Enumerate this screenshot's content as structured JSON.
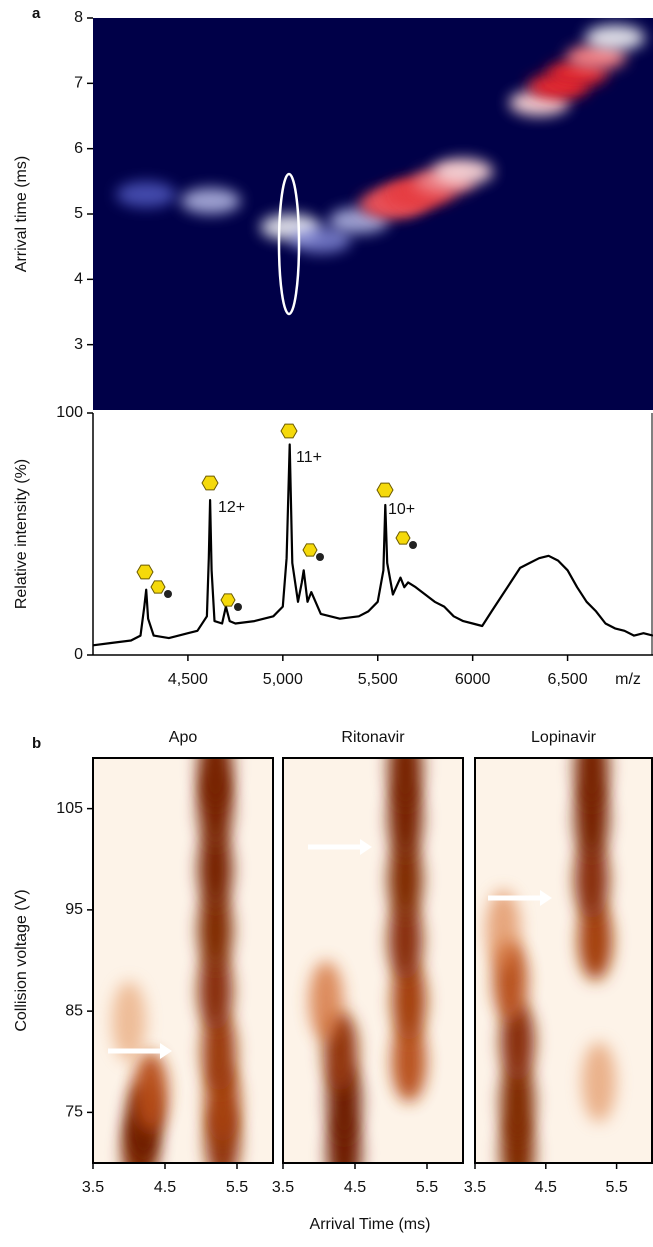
{
  "panel_labels": [
    "a",
    "b"
  ],
  "chart_data": [
    {
      "type": "heatmap",
      "ylabel": "Arrival time (ms)",
      "xlim": [
        4000,
        6950
      ],
      "ylim": [
        2,
        8
      ],
      "yticks": [
        3,
        4,
        5,
        6,
        7,
        8
      ],
      "background": "#000048",
      "colors": [
        "#2438ff",
        "#ffffff",
        "#e3262e"
      ],
      "x": [
        4280,
        4620,
        5040,
        5200,
        5400,
        5560,
        5620,
        5680,
        5750,
        5850,
        5950,
        6350,
        6450,
        6550,
        6650,
        6750
      ],
      "y": [
        5.3,
        5.2,
        4.8,
        4.6,
        4.9,
        5.15,
        5.2,
        5.3,
        5.35,
        5.5,
        5.65,
        6.7,
        6.95,
        7.15,
        7.4,
        7.7
      ],
      "values": [
        0.2,
        0.4,
        0.5,
        0.3,
        0.4,
        0.9,
        0.9,
        0.95,
        0.95,
        0.8,
        0.6,
        0.6,
        1,
        1,
        0.8,
        0.5
      ]
    },
    {
      "type": "line",
      "ylabel": "Relative intensity (%)",
      "xlabel": "m/z",
      "xlim": [
        4000,
        6950
      ],
      "ylim": [
        0,
        100
      ],
      "yticks": [
        0,
        100
      ],
      "xticks": [
        {
          "value": 4500,
          "label": "4,500"
        },
        {
          "value": 5000,
          "label": "5,000"
        },
        {
          "value": 5500,
          "label": "5,500"
        },
        6000,
        {
          "value": 6500,
          "label": "6,500"
        }
      ],
      "color": "#000000",
      "annotations": [
        "12+",
        "11+",
        "10+"
      ],
      "x": [
        4000,
        4100,
        4200,
        4250,
        4270,
        4280,
        4290,
        4320,
        4400,
        4500,
        4550,
        4600,
        4610,
        4617,
        4625,
        4640,
        4680,
        4700,
        4720,
        4750,
        4850,
        4950,
        5000,
        5020,
        5036,
        5050,
        5080,
        5100,
        5110,
        5130,
        5150,
        5200,
        5300,
        5400,
        5450,
        5500,
        5530,
        5540,
        5550,
        5580,
        5620,
        5640,
        5660,
        5700,
        5750,
        5800,
        5850,
        5900,
        5950,
        6000,
        6050,
        6100,
        6150,
        6200,
        6250,
        6300,
        6350,
        6400,
        6450,
        6500,
        6550,
        6600,
        6650,
        6700,
        6750,
        6800,
        6850,
        6900,
        6950
      ],
      "values": [
        4,
        5,
        6,
        8,
        20,
        27,
        15,
        8,
        7,
        9,
        10,
        16,
        40,
        64,
        35,
        14,
        13,
        20,
        14,
        13,
        14,
        16,
        20,
        40,
        87,
        38,
        22,
        30,
        35,
        22,
        26,
        17,
        15,
        16,
        18,
        22,
        35,
        62,
        38,
        25,
        32,
        28,
        30,
        28,
        25,
        22,
        20,
        16,
        14,
        13,
        12,
        18,
        24,
        30,
        36,
        38,
        40,
        41,
        39,
        35,
        28,
        22,
        18,
        13,
        11,
        10,
        8,
        9,
        8
      ]
    },
    {
      "type": "heatmap",
      "title": "Apo",
      "ylabel": "Collision voltage (V)",
      "xlim": [
        3.5,
        6.0
      ],
      "ylim": [
        70,
        110
      ],
      "xticks": [
        3.5,
        4.5,
        5.5
      ],
      "yticks": [
        75,
        85,
        95,
        105
      ],
      "background": "#fdf3e8",
      "colors": [
        "#f4b680",
        "#c8561a",
        "#6e1e00"
      ],
      "x": [
        4.15,
        4.2,
        4.3,
        4.0,
        5.3,
        5.3,
        5.25,
        5.2,
        5.2,
        5.2,
        5.2,
        5.2
      ],
      "y": [
        71,
        74,
        77,
        84,
        72,
        76,
        81,
        87,
        93,
        99,
        105,
        109
      ],
      "values": [
        0.9,
        1,
        0.6,
        0.2,
        0.8,
        0.7,
        0.75,
        0.85,
        0.9,
        0.95,
        0.95,
        0.95
      ]
    },
    {
      "type": "heatmap",
      "title": "Ritonavir",
      "xlabel": "Arrival Time (ms)",
      "xlim": [
        3.5,
        6.0
      ],
      "ylim": [
        70,
        110
      ],
      "xticks": [
        3.5,
        4.5,
        5.5
      ],
      "background": "#fdf3e8",
      "colors": [
        "#f4b680",
        "#c8561a",
        "#6e1e00"
      ],
      "x": [
        4.35,
        4.35,
        4.3,
        4.1,
        5.25,
        5.25,
        5.2,
        5.2,
        5.2,
        5.2
      ],
      "y": [
        71,
        76,
        81,
        86,
        80,
        86,
        92,
        98,
        104,
        109
      ],
      "values": [
        1,
        1,
        0.8,
        0.4,
        0.6,
        0.7,
        0.85,
        0.9,
        0.95,
        0.95
      ]
    },
    {
      "type": "heatmap",
      "title": "Lopinavir",
      "xlim": [
        3.5,
        6.0
      ],
      "ylim": [
        70,
        110
      ],
      "xticks": [
        3.5,
        4.5,
        5.5
      ],
      "background": "#fdf3e8",
      "colors": [
        "#f4b680",
        "#c8561a",
        "#6e1e00"
      ],
      "x": [
        4.1,
        4.1,
        4.1,
        4.0,
        3.9,
        5.25,
        5.2,
        5.15,
        5.15,
        5.15
      ],
      "y": [
        71,
        76,
        82,
        88,
        93,
        78,
        92,
        98,
        104,
        109
      ],
      "values": [
        0.9,
        0.9,
        0.85,
        0.6,
        0.3,
        0.25,
        0.7,
        0.85,
        0.95,
        0.95
      ]
    }
  ]
}
